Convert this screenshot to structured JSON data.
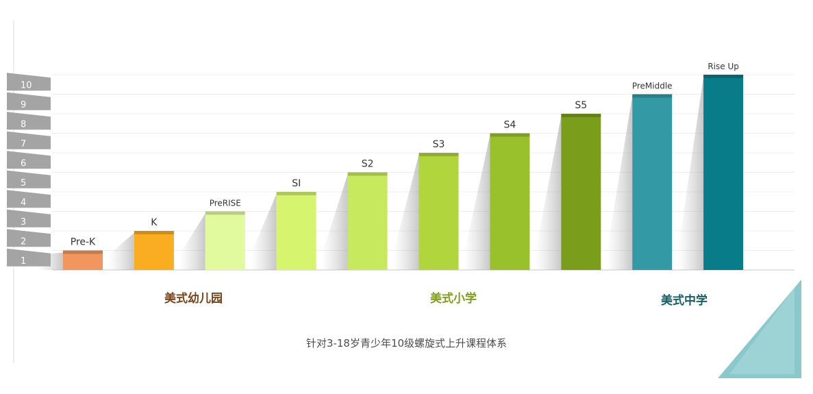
{
  "chart_data": {
    "type": "bar",
    "title": "",
    "xlabel": "",
    "ylabel": "",
    "ylim": [
      0,
      10
    ],
    "y_ticks": [
      "1",
      "2",
      "3",
      "4",
      "5",
      "6",
      "7",
      "8",
      "9",
      "10"
    ],
    "grid": true,
    "categories": [
      "Pre-K",
      "K",
      "PreRISE",
      "SI",
      "S2",
      "S3",
      "S4",
      "S5",
      "PreMiddle",
      "Rise Up"
    ],
    "values": [
      1,
      2,
      3,
      4,
      5,
      6,
      7,
      8,
      9,
      10
    ],
    "bar_colors": [
      "#f0965e",
      "#fbad21",
      "#e2fa9e",
      "#d6f46e",
      "#c6e95e",
      "#b1d53c",
      "#98c12b",
      "#7a9e1b",
      "#3399a4",
      "#087c88"
    ]
  },
  "groups": [
    {
      "label": "美式幼儿园",
      "color": "#7a4418"
    },
    {
      "label": "美式小学",
      "color": "#7e9e1c"
    },
    {
      "label": "美式中学",
      "color": "#135f68"
    }
  ],
  "caption": "针对3-18岁青少年10级螺旋式上升课程体系"
}
